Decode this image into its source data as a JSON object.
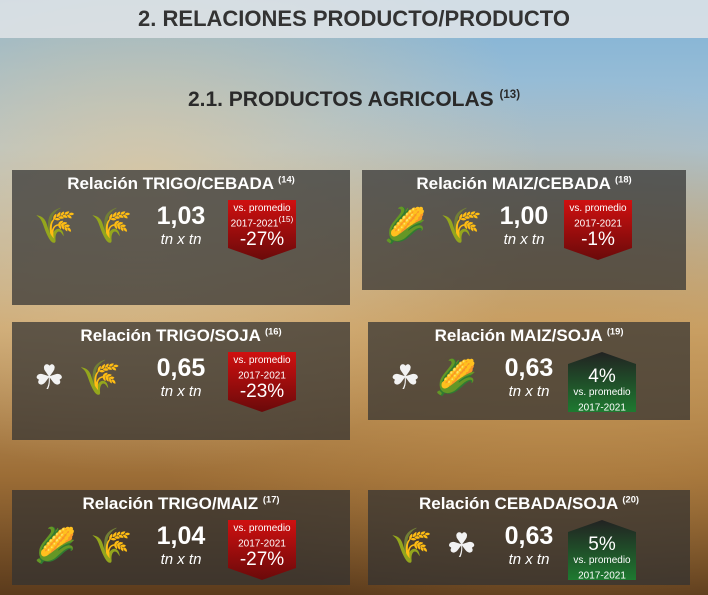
{
  "header": {
    "title": "2. RELACIONES PRODUCTO/PRODUCTO"
  },
  "section": {
    "title": "2.1. PRODUCTOS AGRICOLAS",
    "note": "(13)"
  },
  "colors": {
    "negative": "#d01010",
    "positive": "#1e7a30"
  },
  "cards": [
    {
      "title": "Relación TRIGO/CEBADA",
      "note": "(14)",
      "icons": [
        "barley-icon",
        "wheat-icon"
      ],
      "value": "1,03",
      "unit": "tn x tn",
      "badge_label": "vs. promedio",
      "badge_period": "2017-2021",
      "badge_note": "(15)",
      "change": "-27%",
      "direction": "down"
    },
    {
      "title": "Relación MAIZ/CEBADA",
      "note": "(18)",
      "icons": [
        "corn-icon",
        "barley-icon"
      ],
      "value": "1,00",
      "unit": "tn x tn",
      "badge_label": "vs. promedio",
      "badge_period": "2017-2021",
      "badge_note": "",
      "change": "-1%",
      "direction": "down"
    },
    {
      "title": "Relación TRIGO/SOJA",
      "note": "(16)",
      "icons": [
        "soy-icon",
        "wheat-icon"
      ],
      "value": "0,65",
      "unit": "tn x tn",
      "badge_label": "vs. promedio",
      "badge_period": "2017-2021",
      "badge_note": "",
      "change": "-23%",
      "direction": "down"
    },
    {
      "title": "Relación MAIZ/SOJA",
      "note": "(19)",
      "icons": [
        "soy-icon",
        "corn-icon"
      ],
      "value": "0,63",
      "unit": "tn x tn",
      "badge_label": "vs. promedio",
      "badge_period": "2017-2021",
      "badge_note": "",
      "change": "4%",
      "direction": "up"
    },
    {
      "title": "Relación TRIGO/MAIZ",
      "note": "(17)",
      "icons": [
        "corn-icon",
        "wheat-icon"
      ],
      "value": "1,04",
      "unit": "tn x tn",
      "badge_label": "vs. promedio",
      "badge_period": "2017-2021",
      "badge_note": "",
      "change": "-27%",
      "direction": "down"
    },
    {
      "title": "Relación CEBADA/SOJA",
      "note": "(20)",
      "icons": [
        "barley-icon",
        "soy-icon"
      ],
      "value": "0,63",
      "unit": "tn x tn",
      "badge_label": "vs. promedio",
      "badge_period": "2017-2021",
      "badge_note": "",
      "change": "5%",
      "direction": "up"
    }
  ]
}
